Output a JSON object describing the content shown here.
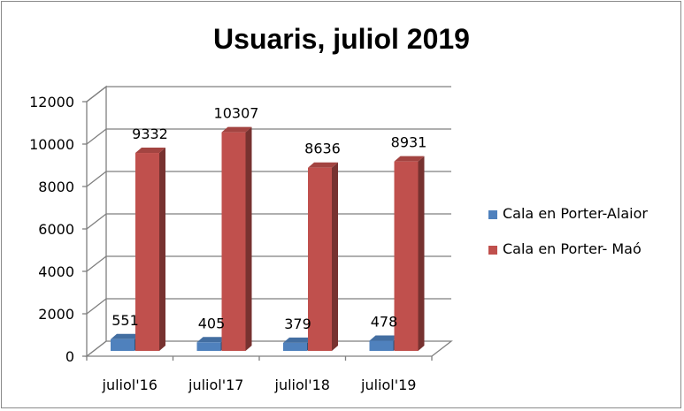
{
  "chart_data": {
    "type": "bar",
    "title": "Usuaris, juliol 2019",
    "categories": [
      "juliol'16",
      "juliol'17",
      "juliol'18",
      "juliol'19"
    ],
    "series": [
      {
        "name": "Cala en Porter-Alaior",
        "values": [
          551,
          405,
          379,
          478
        ],
        "color": "#4f81bd",
        "data_labels": [
          "551",
          "405",
          "379",
          "478"
        ]
      },
      {
        "name": "Cala en Porter- Maó",
        "values": [
          9332,
          10307,
          8636,
          8931
        ],
        "color": "#c0504d",
        "data_labels": [
          "9332",
          "10307",
          "8636",
          "8931"
        ]
      }
    ],
    "ylim": [
      0,
      12000
    ],
    "y_ticks": [
      0,
      2000,
      4000,
      6000,
      8000,
      10000,
      12000
    ],
    "y_tick_labels": [
      "0",
      "2000",
      "4000",
      "6000",
      "8000",
      "10000",
      "12000"
    ],
    "grid": true,
    "legend_position": "right",
    "style": "3d-clustered-column"
  }
}
